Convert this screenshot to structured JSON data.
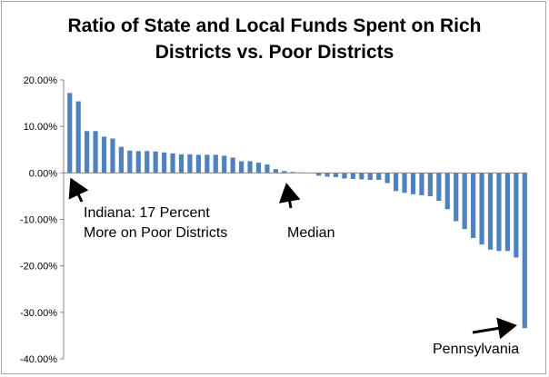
{
  "chart_data": {
    "type": "bar",
    "title_lines": [
      "Ratio of State and Local Funds Spent on Rich",
      "Districts vs. Poor Districts"
    ],
    "ylim": [
      -40,
      20
    ],
    "y_ticks": [
      20,
      10,
      0,
      -10,
      -20,
      -30,
      -40
    ],
    "y_tick_labels": [
      "20.00%",
      "10.00%",
      "0.00%",
      "-10.00%",
      "-20.00%",
      "-30.00%",
      "-40.00%"
    ],
    "grid": false,
    "legend": "none",
    "bar_color": "#4f81bd",
    "values": [
      17.2,
      15.4,
      9.0,
      9.0,
      7.8,
      7.4,
      5.6,
      4.8,
      4.7,
      4.7,
      4.6,
      4.4,
      4.2,
      4.0,
      4.0,
      3.9,
      3.9,
      3.9,
      3.7,
      3.3,
      2.5,
      2.5,
      2.2,
      1.8,
      0.8,
      0.4,
      0.2,
      0.1,
      0.0,
      -0.6,
      -0.8,
      -0.9,
      -1.2,
      -1.3,
      -1.4,
      -1.5,
      -1.5,
      -2.2,
      -3.9,
      -4.3,
      -4.6,
      -4.8,
      -5.0,
      -6.0,
      -7.8,
      -10.4,
      -12.1,
      -14.0,
      -15.4,
      -16.5,
      -16.8,
      -16.8,
      -18.2,
      -33.4
    ],
    "annotations": [
      {
        "lines": [
          "Indiana: 17 Percent",
          "More on Poor Districts"
        ]
      },
      {
        "lines": [
          "Median"
        ]
      },
      {
        "lines": [
          "Pennsylvania"
        ]
      }
    ]
  }
}
